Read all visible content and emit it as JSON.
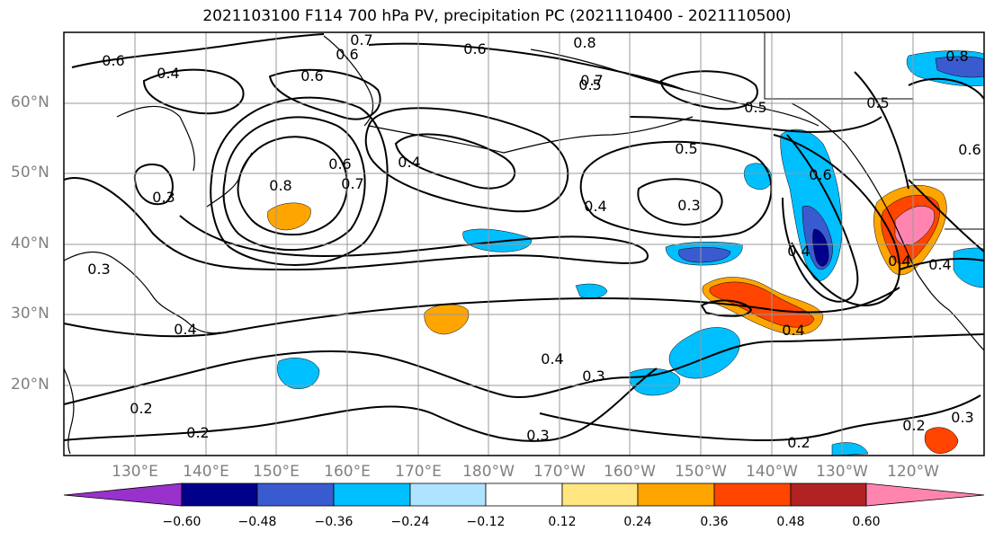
{
  "title": "2021103100 F114 700 hPa PV, precipitation PC (2021110400 - 2021110500)",
  "lat_labels": [
    "60°N",
    "50°N",
    "40°N",
    "30°N",
    "20°N"
  ],
  "lon_labels": [
    "130°E",
    "140°E",
    "150°E",
    "160°E",
    "170°E",
    "180°W",
    "170°W",
    "160°W",
    "150°W",
    "140°W",
    "130°W",
    "120°W"
  ],
  "contour_labels": [
    "0.6",
    "0.7",
    "0.6",
    "0.8",
    "0.6",
    "0.4",
    "0.6",
    "0.5",
    "0.4",
    "0.5",
    "0.3",
    "0.8",
    "0.4",
    "0.7",
    "0.6",
    "0.5",
    "0.4",
    "0.3",
    "0.3",
    "0.4",
    "0.4",
    "0.4",
    "0.3",
    "0.4",
    "0.2",
    "0.2",
    "0.3",
    "0.2",
    "0.2",
    "0.3",
    "0.5",
    "0.6",
    "0.7",
    "0.4",
    "0.8",
    "0.6"
  ],
  "colorbar": {
    "ticks": [
      "−0.60",
      "−0.48",
      "−0.36",
      "−0.24",
      "−0.12",
      "0.12",
      "0.24",
      "0.36",
      "0.48",
      "0.60"
    ],
    "colors": [
      "#9932cc",
      "#00008b",
      "#3a5bcf",
      "#00bfff",
      "#aee4ff",
      "#ffffff",
      "#ffe680",
      "#ffa500",
      "#ff4500",
      "#b22222",
      "#ff85b0"
    ]
  }
}
